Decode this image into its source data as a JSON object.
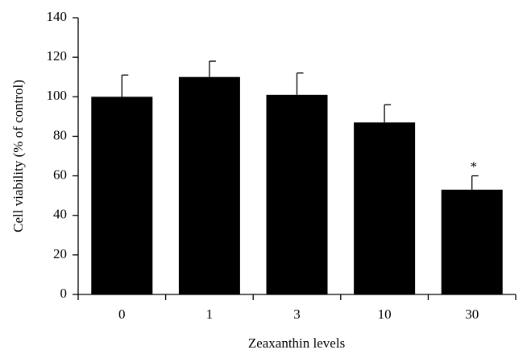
{
  "chart_data": {
    "type": "bar",
    "y_label": "Cell viability (% of control)",
    "x_label": "Zeaxanthin levels",
    "categories": [
      "0",
      "1",
      "3",
      "10",
      "30"
    ],
    "values": [
      100,
      110,
      101,
      87,
      53
    ],
    "errors": [
      11,
      8,
      11,
      9,
      7
    ],
    "significance": [
      null,
      null,
      null,
      null,
      "*"
    ],
    "color": "#000000",
    "ylim": [
      0,
      140
    ],
    "yticks": [
      0,
      20,
      40,
      60,
      80,
      100,
      120,
      140
    ]
  }
}
